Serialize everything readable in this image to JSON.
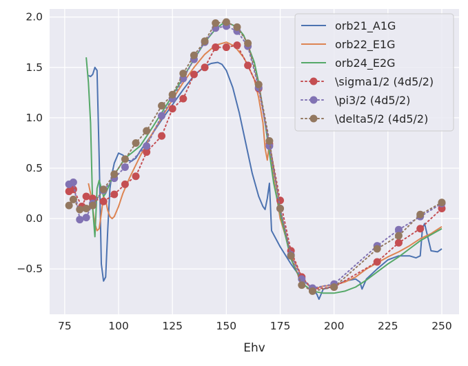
{
  "chart_data": {
    "type": "line",
    "xlabel": "Ehv",
    "ylabel": "",
    "title": "",
    "xlim": [
      68,
      258
    ],
    "ylim": [
      -0.95,
      2.08
    ],
    "xticks": [
      75,
      100,
      125,
      150,
      175,
      200,
      225,
      250
    ],
    "yticks": [
      -0.5,
      0.0,
      0.5,
      1.0,
      1.5,
      2.0
    ],
    "xtick_labels": [
      "75",
      "100",
      "125",
      "150",
      "175",
      "200",
      "225",
      "250"
    ],
    "ytick_labels": [
      "−0.5",
      "0.0",
      "0.5",
      "1.0",
      "1.5",
      "2.0"
    ],
    "grid": true,
    "background": "#eaeaf2",
    "legend_position": "top-right",
    "series": [
      {
        "name": "orb21_A1G",
        "kind": "line",
        "color": "#4c72b0",
        "x": [
          86,
          87,
          88,
          89,
          90,
          91,
          92,
          93,
          94,
          95,
          96,
          97,
          98,
          100,
          102,
          104,
          106,
          108,
          110,
          115,
          120,
          125,
          130,
          135,
          140,
          143,
          146,
          148,
          150,
          153,
          156,
          159,
          162,
          165,
          167,
          168,
          169,
          170,
          171,
          175,
          180,
          185,
          190,
          192,
          193,
          195,
          200,
          205,
          210,
          212,
          213,
          215,
          220,
          225,
          230,
          235,
          238,
          240,
          241,
          242,
          245,
          248,
          250
        ],
        "y": [
          1.42,
          1.41,
          1.43,
          1.5,
          1.47,
          0.6,
          -0.45,
          -0.62,
          -0.58,
          -0.1,
          0.3,
          0.45,
          0.55,
          0.65,
          0.63,
          0.58,
          0.57,
          0.6,
          0.67,
          0.82,
          0.98,
          1.13,
          1.28,
          1.42,
          1.51,
          1.54,
          1.55,
          1.53,
          1.47,
          1.3,
          1.05,
          0.75,
          0.45,
          0.22,
          0.12,
          0.09,
          0.2,
          0.35,
          -0.12,
          -0.28,
          -0.45,
          -0.6,
          -0.7,
          -0.75,
          -0.8,
          -0.7,
          -0.67,
          -0.62,
          -0.6,
          -0.63,
          -0.7,
          -0.6,
          -0.5,
          -0.41,
          -0.37,
          -0.37,
          -0.39,
          -0.37,
          -0.1,
          -0.05,
          -0.32,
          -0.33,
          -0.3
        ]
      },
      {
        "name": "orb22_E1G",
        "kind": "line",
        "color": "#dd8452",
        "x": [
          86,
          87,
          88,
          89,
          90,
          91,
          92,
          93,
          94,
          95,
          96,
          97,
          98,
          100,
          102,
          105,
          110,
          115,
          120,
          125,
          130,
          135,
          140,
          145,
          150,
          153,
          155,
          158,
          160,
          163,
          165,
          167,
          168,
          169,
          170,
          172,
          175,
          180,
          185,
          188,
          190,
          192,
          195,
          200,
          205,
          210,
          215,
          220,
          225,
          230,
          235,
          240,
          245,
          250
        ],
        "y": [
          0.35,
          0.25,
          0.1,
          -0.05,
          -0.12,
          -0.1,
          0.05,
          0.22,
          0.18,
          0.08,
          0.02,
          0.0,
          0.02,
          0.12,
          0.25,
          0.4,
          0.62,
          0.82,
          1.0,
          1.18,
          1.35,
          1.5,
          1.63,
          1.72,
          1.75,
          1.72,
          1.68,
          1.6,
          1.52,
          1.38,
          1.2,
          0.95,
          0.7,
          0.58,
          0.75,
          0.4,
          0.0,
          -0.35,
          -0.58,
          -0.66,
          -0.7,
          -0.69,
          -0.67,
          -0.66,
          -0.63,
          -0.58,
          -0.5,
          -0.44,
          -0.38,
          -0.33,
          -0.27,
          -0.2,
          -0.15,
          -0.08
        ]
      },
      {
        "name": "orb24_E2G",
        "kind": "line",
        "color": "#55a868",
        "x": [
          85,
          86,
          87,
          88,
          89,
          90,
          91,
          92,
          93,
          94,
          95,
          97,
          100,
          103,
          106,
          110,
          115,
          120,
          125,
          130,
          135,
          140,
          145,
          148,
          150,
          152,
          155,
          158,
          160,
          163,
          165,
          168,
          170,
          172,
          175,
          180,
          185,
          190,
          195,
          200,
          205,
          210,
          215,
          220,
          225,
          230,
          235,
          240,
          245,
          250
        ],
        "y": [
          1.6,
          1.35,
          0.95,
          0.1,
          -0.18,
          0.3,
          0.38,
          0.3,
          0.22,
          0.25,
          0.3,
          0.4,
          0.5,
          0.6,
          0.65,
          0.72,
          0.88,
          1.05,
          1.22,
          1.4,
          1.58,
          1.75,
          1.88,
          1.93,
          1.94,
          1.93,
          1.9,
          1.82,
          1.72,
          1.55,
          1.35,
          0.95,
          0.65,
          0.35,
          0.05,
          -0.4,
          -0.64,
          -0.72,
          -0.74,
          -0.74,
          -0.72,
          -0.68,
          -0.61,
          -0.53,
          -0.45,
          -0.38,
          -0.3,
          -0.22,
          -0.16,
          -0.1
        ]
      },
      {
        "name": "\\sigma1/2 (4d5/2)",
        "kind": "dotted-markers",
        "color": "#c44e52",
        "x": [
          77,
          79,
          83,
          85,
          88,
          93,
          98,
          103,
          108,
          113,
          120,
          125,
          130,
          135,
          140,
          145,
          150,
          155,
          160,
          165,
          170,
          175,
          180,
          185,
          190,
          200,
          220,
          230,
          240,
          250
        ],
        "y": [
          0.27,
          0.29,
          0.12,
          0.22,
          0.2,
          0.17,
          0.24,
          0.34,
          0.42,
          0.66,
          0.82,
          1.09,
          1.19,
          1.43,
          1.5,
          1.7,
          1.7,
          1.72,
          1.52,
          1.29,
          0.74,
          0.18,
          -0.32,
          -0.58,
          -0.7,
          -0.68,
          -0.43,
          -0.24,
          -0.1,
          0.1
        ]
      },
      {
        "name": "\\pi3/2 (4d5/2)",
        "kind": "dotted-markers",
        "color": "#8172b3",
        "x": [
          77,
          79,
          82,
          85,
          88,
          93,
          98,
          103,
          113,
          120,
          125,
          130,
          135,
          140,
          145,
          150,
          155,
          160,
          165,
          170,
          175,
          180,
          185,
          190,
          200,
          220,
          230,
          240,
          250
        ],
        "y": [
          0.34,
          0.36,
          -0.01,
          0.01,
          0.15,
          0.28,
          0.4,
          0.51,
          0.72,
          1.02,
          1.19,
          1.39,
          1.58,
          1.75,
          1.89,
          1.91,
          1.86,
          1.71,
          1.3,
          0.72,
          0.1,
          -0.36,
          -0.6,
          -0.69,
          -0.65,
          -0.27,
          -0.11,
          0.02,
          0.15
        ]
      },
      {
        "name": "\\delta5/2 (4d5/2)",
        "kind": "dotted-markers",
        "color": "#937860",
        "x": [
          77,
          79,
          82,
          85,
          88,
          93,
          98,
          103,
          108,
          113,
          120,
          125,
          130,
          135,
          140,
          145,
          150,
          155,
          160,
          165,
          170,
          175,
          180,
          185,
          190,
          200,
          220,
          230,
          240,
          250
        ],
        "y": [
          0.13,
          0.19,
          0.09,
          0.1,
          0.13,
          0.29,
          0.44,
          0.59,
          0.75,
          0.87,
          1.12,
          1.23,
          1.44,
          1.62,
          1.76,
          1.94,
          1.95,
          1.9,
          1.74,
          1.33,
          0.77,
          0.1,
          -0.37,
          -0.66,
          -0.72,
          -0.68,
          -0.3,
          -0.17,
          0.04,
          0.16
        ]
      }
    ]
  }
}
